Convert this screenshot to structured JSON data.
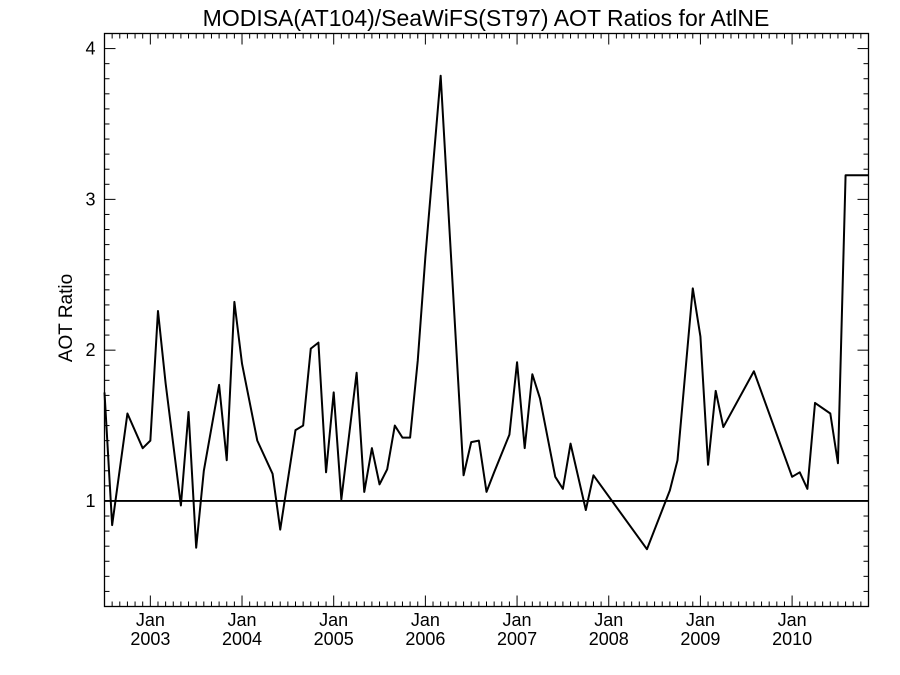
{
  "chart_data": {
    "type": "line",
    "title": "MODISA(AT104)/SeaWiFS(ST97)  AOT Ratios for AtlNE",
    "xlabel": "",
    "ylabel": "AOT Ratio",
    "xlim": [
      "2002-07",
      "2010-11"
    ],
    "ylim": [
      0.3,
      4.1
    ],
    "y_ticks": [
      1,
      2,
      3,
      4
    ],
    "x_ticks": [
      {
        "month": "Jan",
        "year": "2003",
        "date": "2003-01"
      },
      {
        "month": "Jan",
        "year": "2004",
        "date": "2004-01"
      },
      {
        "month": "Jan",
        "year": "2005",
        "date": "2005-01"
      },
      {
        "month": "Jan",
        "year": "2006",
        "date": "2006-01"
      },
      {
        "month": "Jan",
        "year": "2007",
        "date": "2007-01"
      },
      {
        "month": "Jan",
        "year": "2008",
        "date": "2008-01"
      },
      {
        "month": "Jan",
        "year": "2009",
        "date": "2009-01"
      },
      {
        "month": "Jan",
        "year": "2010",
        "date": "2010-01"
      }
    ],
    "reference_line": 1,
    "grid": false,
    "series": [
      {
        "x": [
          "2002-07",
          "2002-08",
          "2002-10",
          "2002-12",
          "2003-01",
          "2003-02",
          "2003-03",
          "2003-05",
          "2003-06",
          "2003-07",
          "2003-08",
          "2003-10",
          "2003-11",
          "2003-12",
          "2004-01",
          "2004-03",
          "2004-05",
          "2004-06",
          "2004-08",
          "2004-09",
          "2004-10",
          "2004-11",
          "2004-12",
          "2005-01",
          "2005-02",
          "2005-04",
          "2005-05",
          "2005-06",
          "2005-07",
          "2005-08",
          "2005-09",
          "2005-10",
          "2005-11",
          "2005-12",
          "2006-01",
          "2006-03",
          "2006-06",
          "2006-07",
          "2006-08",
          "2006-09",
          "2006-10",
          "2006-12",
          "2007-01",
          "2007-02",
          "2007-03",
          "2007-04",
          "2007-06",
          "2007-07",
          "2007-08",
          "2007-10",
          "2007-11",
          "2008-06",
          "2008-09",
          "2008-10",
          "2008-12",
          "2009-01",
          "2009-02",
          "2009-03",
          "2009-04",
          "2009-08",
          "2010-01",
          "2010-02",
          "2010-03",
          "2010-04",
          "2010-06",
          "2010-07",
          "2010-08",
          "2010-09",
          "2010-11"
        ],
        "y": [
          1.72,
          0.84,
          1.58,
          1.35,
          1.4,
          2.26,
          1.78,
          0.97,
          1.59,
          0.69,
          1.2,
          1.77,
          1.27,
          2.32,
          1.91,
          1.4,
          1.18,
          0.81,
          1.47,
          1.5,
          2.01,
          2.05,
          1.19,
          1.72,
          1.01,
          1.85,
          1.06,
          1.35,
          1.11,
          1.21,
          1.5,
          1.42,
          1.42,
          1.93,
          2.62,
          3.82,
          1.17,
          1.39,
          1.4,
          1.06,
          1.19,
          1.44,
          1.92,
          1.35,
          1.84,
          1.68,
          1.16,
          1.08,
          1.38,
          0.94,
          1.17,
          0.68,
          1.07,
          1.27,
          2.41,
          2.09,
          1.24,
          1.73,
          1.49,
          1.86,
          1.16,
          1.19,
          1.08,
          1.65,
          1.58,
          1.25,
          3.16,
          3.16,
          3.16
        ]
      }
    ]
  }
}
